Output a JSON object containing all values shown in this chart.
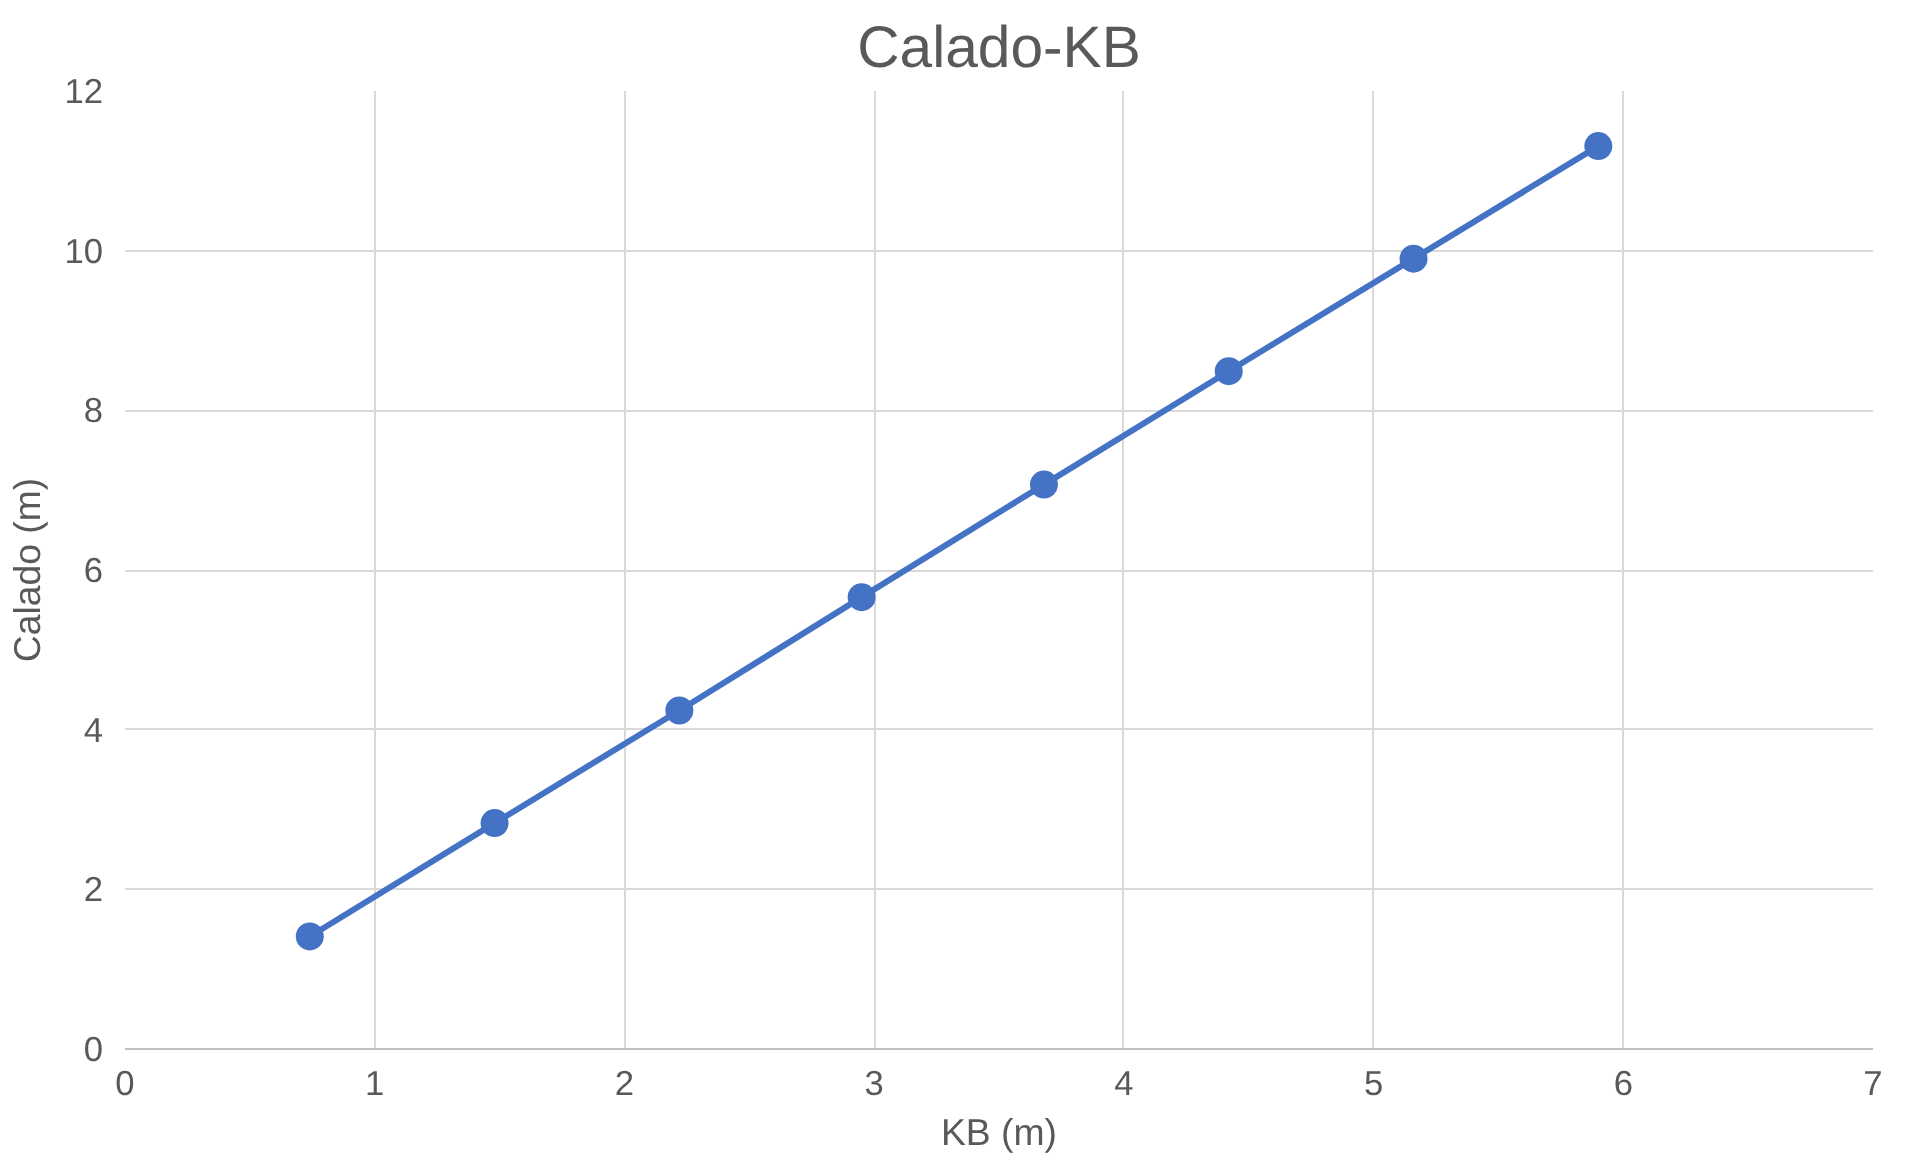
{
  "chart_data": {
    "type": "line",
    "title": "Calado-KB",
    "xlabel": "KB (m)",
    "ylabel": "Calado (m)",
    "x": [
      0.74,
      1.48,
      2.22,
      2.95,
      3.68,
      4.42,
      5.16,
      5.9
    ],
    "series": [
      {
        "color": "#4472c4",
        "values": [
          1.41,
          2.83,
          4.24,
          5.66,
          7.07,
          8.49,
          9.9,
          11.31
        ]
      }
    ],
    "xlim": [
      0,
      7
    ],
    "xticks": [
      0,
      1,
      2,
      3,
      4,
      5,
      6,
      7
    ],
    "ylim": [
      0,
      12
    ],
    "yticks": [
      0,
      2,
      4,
      6,
      8,
      10,
      12
    ],
    "grid": true,
    "marker": "circle",
    "line_style": "solid"
  }
}
